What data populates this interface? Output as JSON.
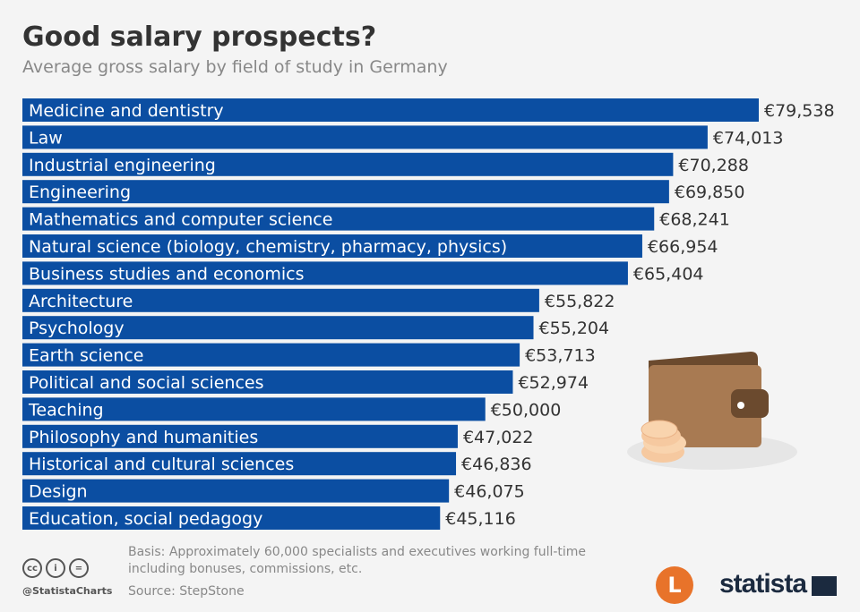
{
  "title": "Good salary prospects?",
  "subtitle": "Average gross salary by field of study in Germany",
  "chart_data": {
    "type": "bar",
    "orientation": "horizontal",
    "title": "Good salary prospects?",
    "subtitle": "Average gross salary by field of study in Germany",
    "categories": [
      "Medicine and dentistry",
      "Law",
      "Industrial engineering",
      "Engineering",
      "Mathematics and computer science",
      "Natural science (biology, chemistry, pharmacy, physics)",
      "Business studies and economics",
      "Architecture",
      "Psychology",
      "Earth science",
      "Political and social sciences",
      "Teaching",
      "Philosophy and humanities",
      "Historical and cultural sciences",
      "Design",
      "Education, social pedagogy"
    ],
    "values": [
      79538,
      74013,
      70288,
      69850,
      68241,
      66954,
      65404,
      55822,
      55204,
      53713,
      52974,
      50000,
      47022,
      46836,
      46075,
      45116
    ],
    "labels": [
      "€79,538",
      "€74,013",
      "€70,288",
      "€69,850",
      "€68,241",
      "€66,954",
      "€65,404",
      "€55,822",
      "€55,204",
      "€53,713",
      "€52,974",
      "€50,000",
      "€47,022",
      "€46,836",
      "€46,075",
      "€45,116"
    ],
    "unit": "€",
    "xlim": [
      0,
      79538
    ],
    "bar_color": "#0b4ea2",
    "grid": false
  },
  "footer": {
    "basis": "Basis: Approximately 60,000 specialists and executives working full-time",
    "basis2": "including bonuses, commissions, etc.",
    "source": "Source: StepStone",
    "handle": "@StatistaCharts",
    "brand": "statista",
    "cc": [
      "cc",
      "i",
      "="
    ]
  },
  "icons": [
    "wallet-icon",
    "coins-icon",
    "creative-commons-icon",
    "logo-l-icon",
    "statista-logo"
  ]
}
